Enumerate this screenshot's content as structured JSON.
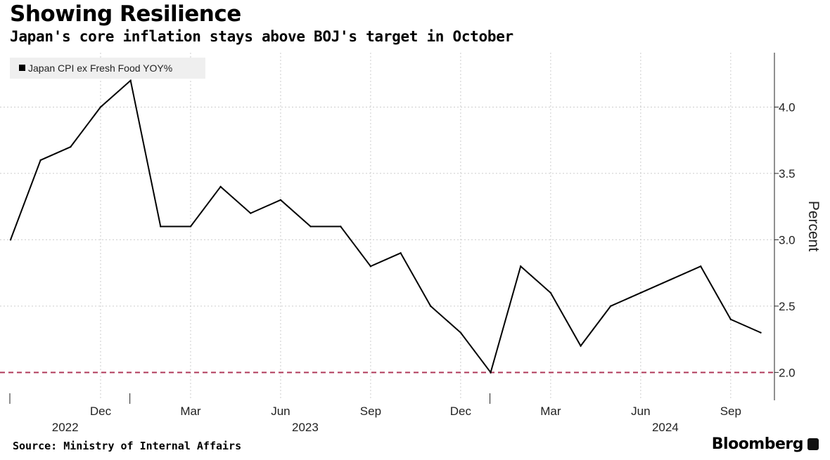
{
  "title": "Showing Resilience",
  "subtitle": "Japan's core inflation stays above BOJ's target in October",
  "source": "Source: Ministry of Internal Affairs",
  "brand": "Bloomberg",
  "chart_data": {
    "type": "line",
    "title": "Showing Resilience",
    "ylabel": "Percent",
    "xlabel": "",
    "ylim": [
      1.79,
      4.41
    ],
    "grid": true,
    "legend": {
      "position": "top-left",
      "entries": [
        "Japan CPI ex Fresh Food YOY%"
      ]
    },
    "x": [
      "2022-09",
      "2022-10",
      "2022-11",
      "2022-12",
      "2023-01",
      "2023-02",
      "2023-03",
      "2023-04",
      "2023-05",
      "2023-06",
      "2023-07",
      "2023-08",
      "2023-09",
      "2023-10",
      "2023-11",
      "2023-12",
      "2024-01",
      "2024-02",
      "2024-03",
      "2024-04",
      "2024-05",
      "2024-06",
      "2024-07",
      "2024-08",
      "2024-09",
      "2024-10"
    ],
    "series": [
      {
        "name": "Japan CPI ex Fresh Food YOY%",
        "color": "#000000",
        "values": [
          3.0,
          3.6,
          3.7,
          4.0,
          4.2,
          3.1,
          3.1,
          3.4,
          3.2,
          3.3,
          3.1,
          3.1,
          2.8,
          2.9,
          2.5,
          2.3,
          2.0,
          2.8,
          2.6,
          2.2,
          2.5,
          2.6,
          2.7,
          2.8,
          2.4,
          2.3
        ]
      }
    ],
    "y_ticks": [
      "2.0",
      "2.5",
      "3.0",
      "3.5",
      "4.0"
    ],
    "y_tick_values": [
      2.0,
      2.5,
      3.0,
      3.5,
      4.0
    ],
    "x_ticks": [
      {
        "month_index": 3,
        "label": "Dec"
      },
      {
        "month_index": 6,
        "label": "Mar"
      },
      {
        "month_index": 9,
        "label": "Jun"
      },
      {
        "month_index": 12,
        "label": "Sep"
      },
      {
        "month_index": 15,
        "label": "Dec"
      },
      {
        "month_index": 18,
        "label": "Mar"
      },
      {
        "month_index": 21,
        "label": "Jun"
      },
      {
        "month_index": 24,
        "label": "Sep"
      }
    ],
    "year_labels": [
      {
        "month_index": 1,
        "label": "2022"
      },
      {
        "month_index": 9,
        "label": "2023"
      },
      {
        "month_index": 21,
        "label": "2024"
      }
    ],
    "reference_line": {
      "value": 2.0,
      "style": "dashed",
      "color": "#b03a5b"
    }
  }
}
